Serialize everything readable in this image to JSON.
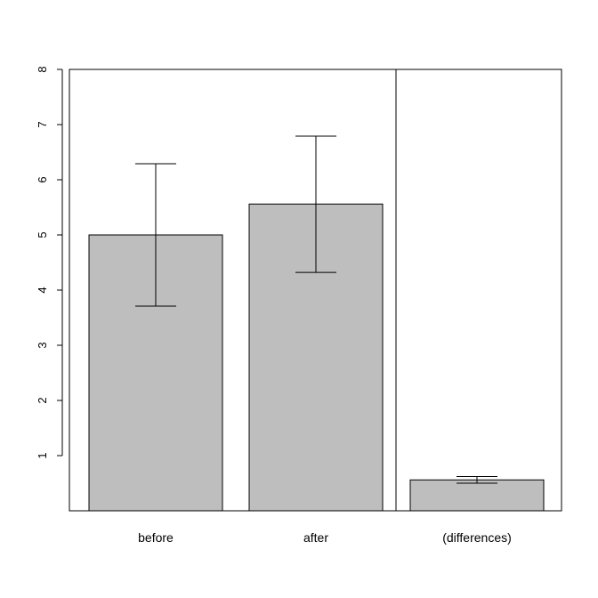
{
  "chart_data": {
    "type": "bar",
    "title": "",
    "xlabel": "",
    "ylabel": "",
    "categories": [
      "before",
      "after",
      "(differences)"
    ],
    "values": [
      5.0,
      5.56,
      0.56
    ],
    "error_bars": [
      {
        "lower": 3.71,
        "upper": 6.29
      },
      {
        "lower": 4.32,
        "upper": 6.79
      },
      {
        "lower": 0.5,
        "upper": 0.62
      }
    ],
    "ylim": [
      0,
      8
    ],
    "y_ticks": [
      1,
      2,
      3,
      4,
      5,
      6,
      7,
      8
    ],
    "y_tick_labels": [
      "1",
      "2",
      "3",
      "4",
      "5",
      "6",
      "7",
      "8"
    ],
    "panel_separator_after_category": "after",
    "grid": false,
    "colors": {
      "bar_fill": "#bebebe",
      "bar_stroke": "#000000",
      "error_bar": "#000000",
      "frame": "#000000",
      "background": "#ffffff"
    }
  }
}
